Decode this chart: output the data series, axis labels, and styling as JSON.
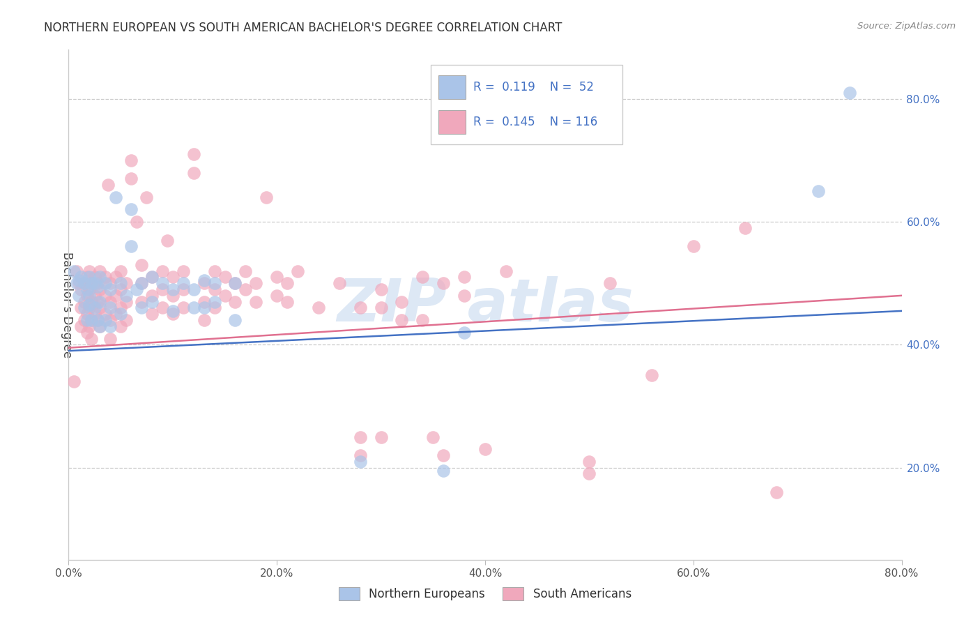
{
  "title": "NORTHERN EUROPEAN VS SOUTH AMERICAN BACHELOR'S DEGREE CORRELATION CHART",
  "source": "Source: ZipAtlas.com",
  "ylabel": "Bachelor's Degree",
  "xlim": [
    0.0,
    0.8
  ],
  "ylim": [
    0.05,
    0.88
  ],
  "xtick_labels": [
    "0.0%",
    "20.0%",
    "40.0%",
    "60.0%",
    "80.0%"
  ],
  "xtick_vals": [
    0.0,
    0.2,
    0.4,
    0.6,
    0.8
  ],
  "ytick_labels": [
    "20.0%",
    "40.0%",
    "60.0%",
    "80.0%"
  ],
  "ytick_vals": [
    0.2,
    0.4,
    0.6,
    0.8
  ],
  "blue_color": "#aac4e8",
  "pink_color": "#f0a8bc",
  "blue_line_color": "#4472c4",
  "pink_line_color": "#e07090",
  "blue_scatter": [
    [
      0.005,
      0.52
    ],
    [
      0.008,
      0.5
    ],
    [
      0.01,
      0.505
    ],
    [
      0.01,
      0.48
    ],
    [
      0.012,
      0.51
    ],
    [
      0.015,
      0.5
    ],
    [
      0.015,
      0.46
    ],
    [
      0.018,
      0.49
    ],
    [
      0.018,
      0.44
    ],
    [
      0.02,
      0.51
    ],
    [
      0.02,
      0.48
    ],
    [
      0.02,
      0.465
    ],
    [
      0.022,
      0.5
    ],
    [
      0.022,
      0.44
    ],
    [
      0.025,
      0.5
    ],
    [
      0.025,
      0.46
    ],
    [
      0.028,
      0.495
    ],
    [
      0.028,
      0.44
    ],
    [
      0.03,
      0.51
    ],
    [
      0.03,
      0.47
    ],
    [
      0.03,
      0.43
    ],
    [
      0.035,
      0.5
    ],
    [
      0.035,
      0.44
    ],
    [
      0.04,
      0.49
    ],
    [
      0.04,
      0.46
    ],
    [
      0.04,
      0.43
    ],
    [
      0.045,
      0.64
    ],
    [
      0.05,
      0.5
    ],
    [
      0.05,
      0.45
    ],
    [
      0.055,
      0.48
    ],
    [
      0.06,
      0.62
    ],
    [
      0.06,
      0.56
    ],
    [
      0.065,
      0.49
    ],
    [
      0.07,
      0.5
    ],
    [
      0.07,
      0.46
    ],
    [
      0.08,
      0.51
    ],
    [
      0.08,
      0.47
    ],
    [
      0.09,
      0.5
    ],
    [
      0.1,
      0.49
    ],
    [
      0.1,
      0.455
    ],
    [
      0.11,
      0.5
    ],
    [
      0.12,
      0.49
    ],
    [
      0.12,
      0.46
    ],
    [
      0.13,
      0.505
    ],
    [
      0.13,
      0.46
    ],
    [
      0.14,
      0.5
    ],
    [
      0.14,
      0.47
    ],
    [
      0.16,
      0.5
    ],
    [
      0.16,
      0.44
    ],
    [
      0.28,
      0.21
    ],
    [
      0.36,
      0.195
    ],
    [
      0.38,
      0.42
    ],
    [
      0.72,
      0.65
    ],
    [
      0.75,
      0.81
    ]
  ],
  "pink_scatter": [
    [
      0.005,
      0.34
    ],
    [
      0.008,
      0.52
    ],
    [
      0.01,
      0.5
    ],
    [
      0.012,
      0.49
    ],
    [
      0.012,
      0.46
    ],
    [
      0.012,
      0.43
    ],
    [
      0.015,
      0.5
    ],
    [
      0.015,
      0.47
    ],
    [
      0.015,
      0.44
    ],
    [
      0.018,
      0.51
    ],
    [
      0.018,
      0.48
    ],
    [
      0.018,
      0.45
    ],
    [
      0.018,
      0.42
    ],
    [
      0.02,
      0.52
    ],
    [
      0.02,
      0.49
    ],
    [
      0.02,
      0.46
    ],
    [
      0.02,
      0.43
    ],
    [
      0.022,
      0.5
    ],
    [
      0.022,
      0.47
    ],
    [
      0.022,
      0.44
    ],
    [
      0.022,
      0.41
    ],
    [
      0.025,
      0.51
    ],
    [
      0.025,
      0.48
    ],
    [
      0.025,
      0.45
    ],
    [
      0.028,
      0.5
    ],
    [
      0.028,
      0.47
    ],
    [
      0.028,
      0.44
    ],
    [
      0.03,
      0.52
    ],
    [
      0.03,
      0.49
    ],
    [
      0.03,
      0.46
    ],
    [
      0.03,
      0.43
    ],
    [
      0.035,
      0.51
    ],
    [
      0.035,
      0.48
    ],
    [
      0.035,
      0.45
    ],
    [
      0.038,
      0.66
    ],
    [
      0.04,
      0.5
    ],
    [
      0.04,
      0.47
    ],
    [
      0.04,
      0.44
    ],
    [
      0.04,
      0.41
    ],
    [
      0.045,
      0.51
    ],
    [
      0.045,
      0.48
    ],
    [
      0.045,
      0.45
    ],
    [
      0.05,
      0.52
    ],
    [
      0.05,
      0.49
    ],
    [
      0.05,
      0.46
    ],
    [
      0.05,
      0.43
    ],
    [
      0.055,
      0.5
    ],
    [
      0.055,
      0.47
    ],
    [
      0.055,
      0.44
    ],
    [
      0.06,
      0.7
    ],
    [
      0.06,
      0.67
    ],
    [
      0.065,
      0.6
    ],
    [
      0.07,
      0.53
    ],
    [
      0.07,
      0.5
    ],
    [
      0.07,
      0.47
    ],
    [
      0.075,
      0.64
    ],
    [
      0.08,
      0.51
    ],
    [
      0.08,
      0.48
    ],
    [
      0.08,
      0.45
    ],
    [
      0.09,
      0.52
    ],
    [
      0.09,
      0.49
    ],
    [
      0.09,
      0.46
    ],
    [
      0.095,
      0.57
    ],
    [
      0.1,
      0.51
    ],
    [
      0.1,
      0.48
    ],
    [
      0.1,
      0.45
    ],
    [
      0.11,
      0.52
    ],
    [
      0.11,
      0.49
    ],
    [
      0.11,
      0.46
    ],
    [
      0.12,
      0.71
    ],
    [
      0.12,
      0.68
    ],
    [
      0.13,
      0.5
    ],
    [
      0.13,
      0.47
    ],
    [
      0.13,
      0.44
    ],
    [
      0.14,
      0.52
    ],
    [
      0.14,
      0.49
    ],
    [
      0.14,
      0.46
    ],
    [
      0.15,
      0.51
    ],
    [
      0.15,
      0.48
    ],
    [
      0.16,
      0.5
    ],
    [
      0.16,
      0.47
    ],
    [
      0.17,
      0.52
    ],
    [
      0.17,
      0.49
    ],
    [
      0.18,
      0.5
    ],
    [
      0.18,
      0.47
    ],
    [
      0.19,
      0.64
    ],
    [
      0.2,
      0.51
    ],
    [
      0.2,
      0.48
    ],
    [
      0.21,
      0.5
    ],
    [
      0.21,
      0.47
    ],
    [
      0.22,
      0.52
    ],
    [
      0.24,
      0.46
    ],
    [
      0.26,
      0.5
    ],
    [
      0.28,
      0.46
    ],
    [
      0.28,
      0.25
    ],
    [
      0.28,
      0.22
    ],
    [
      0.3,
      0.49
    ],
    [
      0.3,
      0.46
    ],
    [
      0.3,
      0.25
    ],
    [
      0.32,
      0.47
    ],
    [
      0.32,
      0.44
    ],
    [
      0.34,
      0.51
    ],
    [
      0.34,
      0.44
    ],
    [
      0.35,
      0.25
    ],
    [
      0.36,
      0.5
    ],
    [
      0.36,
      0.22
    ],
    [
      0.38,
      0.51
    ],
    [
      0.38,
      0.48
    ],
    [
      0.4,
      0.23
    ],
    [
      0.42,
      0.52
    ],
    [
      0.5,
      0.21
    ],
    [
      0.5,
      0.19
    ],
    [
      0.52,
      0.5
    ],
    [
      0.56,
      0.35
    ],
    [
      0.6,
      0.56
    ],
    [
      0.65,
      0.59
    ],
    [
      0.68,
      0.16
    ]
  ]
}
